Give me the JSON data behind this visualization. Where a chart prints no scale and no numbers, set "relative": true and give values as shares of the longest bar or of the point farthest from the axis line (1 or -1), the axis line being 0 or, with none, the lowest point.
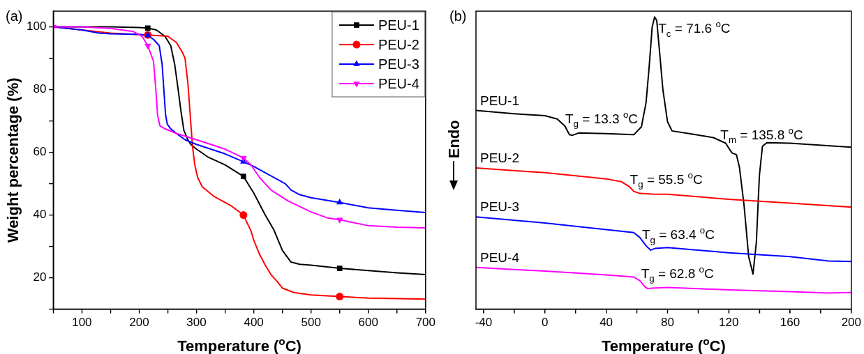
{
  "chart_data": [
    {
      "type": "line",
      "annotations": [
        "(a)"
      ],
      "xlabel": "Temperature ($^{o}$C)",
      "ylabel": "Weight percentage (%)",
      "xlim": [
        50,
        700
      ],
      "ylim": [
        10,
        105
      ],
      "xticks": [
        {
          "value": 50,
          "label": null
        },
        100,
        {
          "value": 150,
          "label": null
        },
        200,
        {
          "value": 250,
          "label": null
        },
        300,
        {
          "value": 350,
          "label": null
        },
        400,
        {
          "value": 450,
          "label": null
        },
        500,
        {
          "value": 550,
          "label": null
        },
        600,
        {
          "value": 650,
          "label": null
        },
        700
      ],
      "yticks": [
        {
          "value": 10,
          "label": null
        },
        20,
        {
          "value": 30,
          "label": null
        },
        40,
        {
          "value": 50,
          "label": null
        },
        60,
        {
          "value": 70,
          "label": null
        },
        80,
        {
          "value": 90,
          "label": null
        },
        100
      ],
      "grid": false,
      "legend": "top right",
      "series": [
        {
          "type": "line",
          "color": "#000000",
          "x": [
            50,
            100,
            150,
            200,
            215,
            230,
            245,
            255,
            262,
            268,
            273,
            278,
            285,
            290,
            300,
            320,
            350,
            382,
            400,
            420,
            435,
            450,
            465,
            480,
            500,
            550,
            600,
            650,
            700
          ],
          "values": [
            100,
            100,
            100,
            99.8,
            99.6,
            99,
            97,
            94,
            88,
            80,
            73,
            67,
            64,
            62.5,
            61,
            58.5,
            56,
            52.3,
            47,
            40,
            35.3,
            28.7,
            25,
            24.3,
            24,
            23,
            22.3,
            21.6,
            21
          ]
        },
        {
          "type": "line",
          "color": "#ff0000",
          "x": [
            50,
            100,
            150,
            200,
            215,
            250,
            265,
            275,
            280,
            285,
            289,
            293,
            297,
            302,
            310,
            330,
            360,
            382,
            395,
            400,
            410,
            420,
            430,
            440,
            450,
            470,
            500,
            550,
            600,
            700
          ],
          "values": [
            100,
            99,
            98,
            97.5,
            97.4,
            97,
            95,
            92,
            90,
            82,
            72,
            62,
            56,
            52,
            49,
            46,
            43,
            40,
            35,
            32,
            27.5,
            24,
            21,
            19,
            16.7,
            15.3,
            14.5,
            14,
            13.5,
            13.2
          ]
        },
        {
          "type": "line",
          "color": "#0000ff",
          "x": [
            50,
            100,
            130,
            150,
            200,
            215,
            225,
            235,
            240,
            243,
            246,
            249,
            255,
            265,
            280,
            300,
            350,
            382,
            400,
            420,
            440,
            455,
            465,
            480,
            500,
            550,
            600,
            650,
            700
          ],
          "values": [
            100,
            99,
            98,
            97.8,
            97.6,
            97.3,
            96,
            94,
            88,
            80,
            72,
            69,
            67.5,
            66,
            64,
            62.5,
            59.5,
            57,
            55.5,
            53.5,
            51.5,
            50,
            48,
            46.5,
            45.5,
            44,
            42.3,
            41.5,
            40.8
          ]
        },
        {
          "type": "line",
          "color": "#ff00ff",
          "x": [
            50,
            100,
            150,
            190,
            205,
            215,
            225,
            229,
            232,
            236,
            245,
            265,
            300,
            350,
            382,
            395,
            410,
            430,
            460,
            500,
            530,
            550,
            600,
            650,
            700
          ],
          "values": [
            100,
            100,
            99.5,
            98.5,
            97,
            94,
            89,
            80,
            72,
            68.5,
            67.5,
            66,
            64,
            61,
            58.2,
            56,
            52,
            48,
            44.5,
            41,
            39,
            38.5,
            36.6,
            36.1,
            35.9
          ]
        },
        {
          "type": "scatter",
          "name": "PEU-1",
          "color": "#000000",
          "marker": "square",
          "x": [
            215,
            382,
            550
          ],
          "values": [
            99.6,
            52.3,
            23
          ]
        },
        {
          "type": "scatter",
          "name": "PEU-2",
          "color": "#ff0000",
          "marker": "circle",
          "x": [
            215,
            382,
            550
          ],
          "values": [
            97.4,
            40,
            14
          ]
        },
        {
          "type": "scatter",
          "name": "PEU-3",
          "color": "#0000ff",
          "marker": "triangle",
          "x": [
            215,
            382,
            550
          ],
          "values": [
            97.3,
            57,
            44
          ]
        },
        {
          "type": "scatter",
          "name": "PEU-4",
          "color": "#ff00ff",
          "marker": "triangle_down",
          "x": [
            50,
            215,
            382,
            550
          ],
          "values": [
            100,
            94,
            58.2,
            38.5
          ]
        }
      ]
    },
    {
      "type": "line",
      "relative": true,
      "xlabel": "Temperature ($^{o}$C)",
      "ylabel": "Endo",
      "xlim": [
        -45,
        200
      ],
      "xticks": [
        -40,
        {
          "value": -20,
          "label": null
        },
        0,
        {
          "value": 20,
          "label": null
        },
        40,
        {
          "value": 60,
          "label": null
        },
        80,
        {
          "value": 100,
          "label": null
        },
        120,
        {
          "value": 140,
          "label": null
        },
        160,
        {
          "value": 180,
          "label": null
        },
        200
      ],
      "grid": false,
      "annotations": [
        "(b)",
        {
          "text": "T$_{c}$ = 71.6 $^{o}$C",
          "x": 74,
          "y": 0.946
        },
        {
          "text": "T$_{g}$ = 13.3 $^{o}$C",
          "x": 13.3,
          "y": 0.637
        },
        {
          "text": "T$_{m}$ = 135.8 $^{o}$C",
          "x": 114.6,
          "y": 0.582
        },
        {
          "text": "T$_{g}$ = 55.5 $^{o}$C",
          "x": 55.5,
          "y": 0.429
        },
        {
          "text": "T$_{g}$ = 63.4 $^{o}$C",
          "x": 63.4,
          "y": 0.24
        },
        {
          "text": "T$_{g}$ = 62.8 $^{o}$C",
          "x": 62.8,
          "y": 0.107
        }
      ],
      "series": [
        {
          "name": "PEU-1",
          "color": "#000000",
          "x": [
            -45,
            -20,
            0,
            8,
            13,
            16,
            18,
            22,
            40,
            58,
            63,
            66,
            68,
            70,
            71.6,
            73,
            75,
            77,
            80,
            83,
            95,
            110,
            118,
            122,
            125,
            127,
            130,
            133,
            135.8,
            138,
            140,
            142,
            145,
            160,
            200
          ],
          "values": [
            0.68,
            0.669,
            0.662,
            0.651,
            0.627,
            0.597,
            0.595,
            0.603,
            0.601,
            0.597,
            0.624,
            0.706,
            0.826,
            0.965,
            1,
            0.988,
            0.872,
            0.752,
            0.642,
            0.61,
            0.6,
            0.587,
            0.568,
            0.535,
            0.529,
            0.485,
            0.355,
            0.18,
            0.12,
            0.227,
            0.457,
            0.558,
            0.57,
            0.568,
            0.554
          ]
        },
        {
          "name": "PEU-2",
          "color": "#ff0000",
          "x": [
            -45,
            0,
            40,
            50,
            55,
            58,
            62,
            70,
            80,
            120,
            160,
            200
          ],
          "values": [
            0.483,
            0.467,
            0.446,
            0.436,
            0.42,
            0.403,
            0.396,
            0.394,
            0.393,
            0.376,
            0.363,
            0.349
          ]
        },
        {
          "name": "PEU-3",
          "color": "#0000ff",
          "x": [
            -45,
            0,
            40,
            58,
            62,
            66,
            69,
            72,
            80,
            120,
            160,
            185,
            200
          ],
          "values": [
            0.316,
            0.295,
            0.272,
            0.262,
            0.245,
            0.217,
            0.202,
            0.208,
            0.211,
            0.193,
            0.18,
            0.165,
            0.163
          ]
        },
        {
          "name": "PEU-4",
          "color": "#ff00ff",
          "x": [
            -45,
            0,
            40,
            58,
            62,
            65,
            67,
            70,
            80,
            120,
            160,
            185,
            200
          ],
          "values": [
            0.143,
            0.13,
            0.117,
            0.11,
            0.097,
            0.078,
            0.07,
            0.072,
            0.074,
            0.066,
            0.06,
            0.055,
            0.057
          ]
        }
      ]
    }
  ]
}
